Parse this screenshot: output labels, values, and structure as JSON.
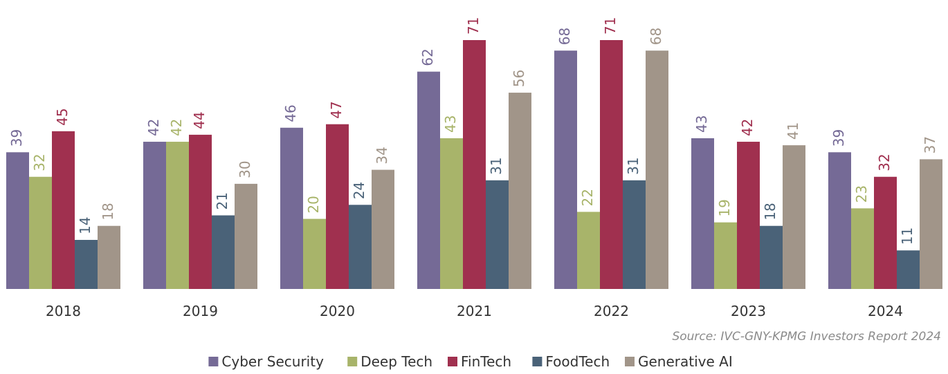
{
  "chart_data": {
    "type": "bar",
    "categories": [
      "2018",
      "2019",
      "2020",
      "2021",
      "2022",
      "2023",
      "2024"
    ],
    "series": [
      {
        "name": "Cyber Security",
        "color": "#756a96",
        "values": [
          39,
          42,
          46,
          62,
          68,
          43,
          39
        ]
      },
      {
        "name": "Deep Tech",
        "color": "#a8b46a",
        "values": [
          32,
          42,
          20,
          43,
          22,
          19,
          23
        ]
      },
      {
        "name": "FinTech",
        "color": "#a0304f",
        "values": [
          45,
          44,
          47,
          71,
          71,
          42,
          32
        ]
      },
      {
        "name": "FoodTech",
        "color": "#4a6278",
        "values": [
          14,
          21,
          24,
          31,
          31,
          18,
          11
        ]
      },
      {
        "name": "Generative AI",
        "color": "#a19589",
        "values": [
          18,
          30,
          34,
          56,
          68,
          41,
          37
        ]
      }
    ],
    "source": "Source: IVC-GNY-KPMG Investors Report 2024"
  }
}
